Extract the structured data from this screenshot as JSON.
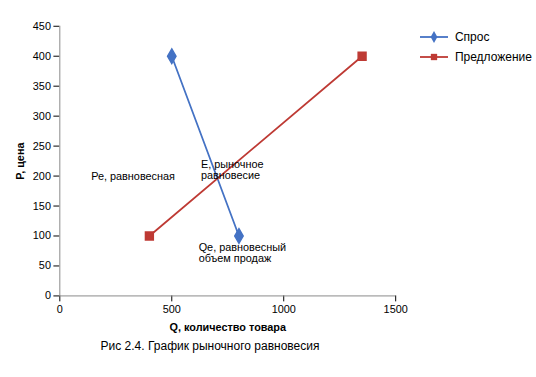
{
  "chart_data": {
    "type": "line",
    "caption": "Рис 2.4. График рыночного равновесия",
    "xlabel": "Q, количество товара",
    "ylabel": "P, цена",
    "series": [
      {
        "name": "Спрос",
        "color": "#4472c4",
        "marker": "diamond",
        "x": [
          500,
          800
        ],
        "values": [
          400,
          100
        ]
      },
      {
        "name": "Предложение",
        "color": "#be3a34",
        "marker": "square",
        "x": [
          400,
          1350
        ],
        "values": [
          100,
          400
        ]
      }
    ],
    "xlim": [
      0,
      1500
    ],
    "ylim": [
      0,
      450
    ],
    "xticks": [
      0,
      500,
      1000,
      1500
    ],
    "yticks": [
      0,
      50,
      100,
      150,
      200,
      250,
      300,
      350,
      400,
      450
    ],
    "annotations": [
      {
        "text": "Ре, равновесная",
        "x": 140,
        "y": 200
      },
      {
        "text": "Е, рыночное\nравновесие",
        "x": 630,
        "y": 210
      },
      {
        "text": "Qe, равновесный\nобъем продаж",
        "x": 620,
        "y": 72
      }
    ],
    "grid": false,
    "legend": "right"
  }
}
